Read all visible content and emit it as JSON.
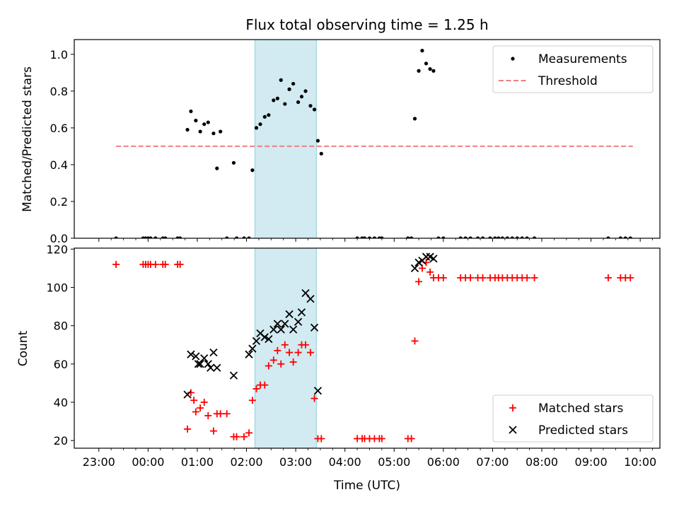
{
  "chart_data": {
    "title": "Flux total observing time = 1.25 h",
    "xlabel": "Time (UTC)",
    "x_tick_labels": [
      "23:00",
      "00:00",
      "01:00",
      "02:00",
      "03:00",
      "04:00",
      "05:00",
      "06:00",
      "07:00",
      "08:00",
      "09:00",
      "10:00"
    ],
    "x_range_hours": [
      -1.5,
      10.4
    ],
    "shaded_interval_hours": [
      2.17,
      3.42
    ],
    "shade_color": "#add8e6",
    "panels": [
      {
        "type": "scatter",
        "ylabel": "Matched/Predicted stars",
        "ylim": [
          0,
          1.08
        ],
        "y_ticks": [
          0,
          0.2,
          0.4,
          0.6,
          0.8,
          1.0
        ],
        "y_tick_labels": [
          "0.0",
          "0.2",
          "0.4",
          "0.6",
          "0.8",
          "1.0"
        ],
        "legend_position": "top-right",
        "threshold": {
          "name": "Threshold",
          "value": 0.5,
          "x_range": [
            -0.65,
            9.85
          ],
          "color": "#f08080"
        },
        "series": [
          {
            "name": "Measurements",
            "marker": "dot",
            "color": "#000000",
            "x": [
              -0.65,
              -0.1,
              -0.05,
              0.0,
              0.05,
              0.15,
              0.3,
              0.35,
              0.6,
              0.65,
              0.8,
              0.87,
              0.97,
              1.06,
              1.14,
              1.22,
              1.33,
              1.4,
              1.47,
              1.6,
              1.74,
              1.8,
              1.95,
              2.05,
              2.12,
              2.2,
              2.28,
              2.37,
              2.45,
              2.55,
              2.63,
              2.7,
              2.78,
              2.87,
              2.95,
              3.05,
              3.12,
              3.2,
              3.3,
              3.38,
              3.45,
              3.52,
              4.25,
              4.35,
              4.4,
              4.5,
              4.6,
              4.7,
              4.75,
              5.28,
              5.35,
              5.42,
              5.5,
              5.57,
              5.65,
              5.73,
              5.8,
              5.9,
              6.0,
              6.35,
              6.45,
              6.55,
              6.7,
              6.8,
              6.95,
              7.05,
              7.12,
              7.2,
              7.3,
              7.4,
              7.5,
              7.6,
              7.7,
              7.85,
              9.35,
              9.6,
              9.7,
              9.8
            ],
            "y": [
              0,
              0,
              0,
              0,
              0,
              0,
              0,
              0,
              0,
              0,
              0.59,
              0.69,
              0.64,
              0.58,
              0.62,
              0.63,
              0.57,
              0.38,
              0.58,
              0,
              0.41,
              0,
              0,
              0,
              0.37,
              0.6,
              0.62,
              0.66,
              0.67,
              0.75,
              0.76,
              0.86,
              0.73,
              0.81,
              0.84,
              0.74,
              0.77,
              0.8,
              0.72,
              0.7,
              0.53,
              0.46,
              0,
              0,
              0,
              0,
              0,
              0,
              0,
              0,
              0,
              0.65,
              0.91,
              1.02,
              0.95,
              0.92,
              0.91,
              0,
              0,
              0,
              0,
              0,
              0,
              0,
              0,
              0,
              0,
              0,
              0,
              0,
              0,
              0,
              0,
              0,
              0,
              0,
              0,
              0
            ]
          }
        ]
      },
      {
        "type": "scatter",
        "ylabel": "Count",
        "ylim": [
          16,
          120.5
        ],
        "y_ticks": [
          20,
          40,
          60,
          80,
          100,
          120
        ],
        "y_tick_labels": [
          "20",
          "40",
          "60",
          "80",
          "100",
          "120"
        ],
        "legend_position": "bottom-right",
        "series": [
          {
            "name": "Matched stars",
            "marker": "plus",
            "color": "#ff0000",
            "points": [
              [
                -0.65,
                112
              ],
              [
                -0.1,
                112
              ],
              [
                -0.05,
                112
              ],
              [
                0.0,
                112
              ],
              [
                0.05,
                112
              ],
              [
                0.15,
                112
              ],
              [
                0.3,
                112
              ],
              [
                0.35,
                112
              ],
              [
                0.6,
                112
              ],
              [
                0.65,
                112
              ],
              [
                0.8,
                26
              ],
              [
                0.87,
                45
              ],
              [
                0.93,
                41
              ],
              [
                0.97,
                35
              ],
              [
                1.06,
                37
              ],
              [
                1.14,
                40
              ],
              [
                1.22,
                33
              ],
              [
                1.33,
                25
              ],
              [
                1.4,
                34
              ],
              [
                1.47,
                34
              ],
              [
                1.6,
                34
              ],
              [
                1.74,
                22
              ],
              [
                1.8,
                22
              ],
              [
                1.95,
                22
              ],
              [
                2.05,
                24
              ],
              [
                2.12,
                41
              ],
              [
                2.2,
                47
              ],
              [
                2.28,
                49
              ],
              [
                2.37,
                49
              ],
              [
                2.45,
                59
              ],
              [
                2.55,
                62
              ],
              [
                2.63,
                67
              ],
              [
                2.7,
                60
              ],
              [
                2.78,
                70
              ],
              [
                2.87,
                66
              ],
              [
                2.95,
                61
              ],
              [
                3.05,
                66
              ],
              [
                3.12,
                70
              ],
              [
                3.2,
                70
              ],
              [
                3.3,
                66
              ],
              [
                3.38,
                42
              ],
              [
                3.45,
                21
              ],
              [
                3.52,
                21
              ],
              [
                4.25,
                21
              ],
              [
                4.35,
                21
              ],
              [
                4.4,
                21
              ],
              [
                4.5,
                21
              ],
              [
                4.6,
                21
              ],
              [
                4.7,
                21
              ],
              [
                4.75,
                21
              ],
              [
                5.28,
                21
              ],
              [
                5.35,
                21
              ],
              [
                5.42,
                72
              ],
              [
                5.5,
                103
              ],
              [
                5.57,
                110
              ],
              [
                5.65,
                113
              ],
              [
                5.73,
                108
              ],
              [
                5.8,
                105
              ],
              [
                5.9,
                105
              ],
              [
                6.0,
                105
              ],
              [
                6.35,
                105
              ],
              [
                6.45,
                105
              ],
              [
                6.55,
                105
              ],
              [
                6.7,
                105
              ],
              [
                6.8,
                105
              ],
              [
                6.95,
                105
              ],
              [
                7.05,
                105
              ],
              [
                7.12,
                105
              ],
              [
                7.2,
                105
              ],
              [
                7.3,
                105
              ],
              [
                7.4,
                105
              ],
              [
                7.5,
                105
              ],
              [
                7.6,
                105
              ],
              [
                7.7,
                105
              ],
              [
                7.85,
                105
              ],
              [
                9.35,
                105
              ],
              [
                9.6,
                105
              ],
              [
                9.7,
                105
              ],
              [
                9.8,
                105
              ]
            ]
          },
          {
            "name": "Predicted stars",
            "marker": "cross",
            "color": "#000000",
            "points": [
              [
                0.8,
                44
              ],
              [
                0.87,
                65
              ],
              [
                0.97,
                64
              ],
              [
                1.02,
                60
              ],
              [
                1.06,
                60
              ],
              [
                1.14,
                63
              ],
              [
                1.22,
                60
              ],
              [
                1.27,
                58
              ],
              [
                1.33,
                66
              ],
              [
                1.4,
                58
              ],
              [
                1.74,
                54
              ],
              [
                2.05,
                65
              ],
              [
                2.12,
                68
              ],
              [
                2.2,
                72
              ],
              [
                2.28,
                76
              ],
              [
                2.37,
                74
              ],
              [
                2.45,
                73
              ],
              [
                2.55,
                78
              ],
              [
                2.63,
                81
              ],
              [
                2.7,
                78
              ],
              [
                2.78,
                81
              ],
              [
                2.87,
                86
              ],
              [
                2.95,
                78
              ],
              [
                3.05,
                82
              ],
              [
                3.12,
                87
              ],
              [
                3.2,
                97
              ],
              [
                3.3,
                94
              ],
              [
                3.38,
                79
              ],
              [
                3.45,
                46
              ],
              [
                5.42,
                110
              ],
              [
                5.5,
                113
              ],
              [
                5.57,
                114
              ],
              [
                5.65,
                116
              ],
              [
                5.73,
                116
              ],
              [
                5.8,
                115
              ]
            ]
          }
        ]
      }
    ]
  }
}
